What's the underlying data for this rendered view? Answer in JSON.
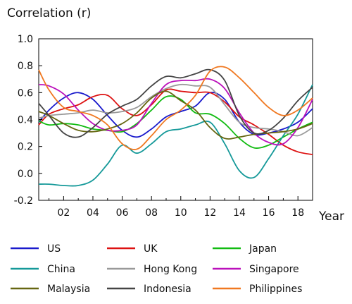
{
  "chart_data": {
    "type": "line",
    "title": "",
    "ylabel": "Correlation (r)",
    "xlabel": "Year",
    "xlim": [
      2000.3,
      2019.0
    ],
    "ylim": [
      -0.2,
      1.0
    ],
    "yticks": [
      -0.2,
      0.0,
      0.2,
      0.4,
      0.6,
      0.8,
      1.0
    ],
    "ytick_labels": [
      "-0.2",
      "0.0",
      "0.2",
      "0.4",
      "0.6",
      "0.8",
      "1.0"
    ],
    "xticks": [
      2002,
      2004,
      2006,
      2008,
      2010,
      2012,
      2014,
      2016,
      2018
    ],
    "xtick_labels": [
      "02",
      "04",
      "06",
      "08",
      "10",
      "12",
      "14",
      "16",
      "18"
    ],
    "grid": false,
    "legend_position": "bottom",
    "x": [
      2000.3,
      2001,
      2002,
      2003,
      2004,
      2005,
      2006,
      2007,
      2008,
      2009,
      2010,
      2011,
      2012,
      2013,
      2014,
      2015,
      2016,
      2017,
      2018,
      2019.0
    ],
    "series": [
      {
        "name": "US",
        "color": "#1a1acc",
        "values": [
          0.38,
          0.47,
          0.56,
          0.6,
          0.55,
          0.43,
          0.32,
          0.27,
          0.33,
          0.42,
          0.46,
          0.5,
          0.6,
          0.55,
          0.38,
          0.29,
          0.3,
          0.33,
          0.38,
          0.48
        ]
      },
      {
        "name": "UK",
        "color": "#dd1111",
        "values": [
          0.36,
          0.44,
          0.48,
          0.51,
          0.57,
          0.58,
          0.48,
          0.43,
          0.51,
          0.62,
          0.61,
          0.6,
          0.6,
          0.53,
          0.42,
          0.36,
          0.29,
          0.21,
          0.16,
          0.14
        ]
      },
      {
        "name": "Japan",
        "color": "#11bb11",
        "values": [
          0.39,
          0.36,
          0.37,
          0.36,
          0.33,
          0.32,
          0.31,
          0.37,
          0.47,
          0.57,
          0.55,
          0.45,
          0.44,
          0.37,
          0.26,
          0.19,
          0.21,
          0.27,
          0.33,
          0.38
        ]
      },
      {
        "name": "China",
        "color": "#159999",
        "values": [
          -0.08,
          -0.08,
          -0.09,
          -0.09,
          -0.05,
          0.07,
          0.21,
          0.15,
          0.22,
          0.31,
          0.33,
          0.36,
          0.38,
          0.22,
          0.02,
          -0.03,
          0.11,
          0.28,
          0.44,
          0.66
        ]
      },
      {
        "name": "Hong Kong",
        "color": "#999999",
        "values": [
          0.41,
          0.43,
          0.44,
          0.45,
          0.47,
          0.45,
          0.46,
          0.49,
          0.57,
          0.63,
          0.66,
          0.65,
          0.64,
          0.51,
          0.38,
          0.34,
          0.33,
          0.31,
          0.28,
          0.34
        ]
      },
      {
        "name": "Singapore",
        "color": "#bb11bb",
        "values": [
          0.66,
          0.65,
          0.59,
          0.47,
          0.37,
          0.32,
          0.32,
          0.36,
          0.52,
          0.66,
          0.69,
          0.69,
          0.7,
          0.63,
          0.45,
          0.3,
          0.23,
          0.22,
          0.34,
          0.55
        ]
      },
      {
        "name": "Malaysia",
        "color": "#666611",
        "values": [
          0.46,
          0.43,
          0.37,
          0.32,
          0.31,
          0.33,
          0.37,
          0.45,
          0.56,
          0.61,
          0.54,
          0.47,
          0.34,
          0.26,
          0.27,
          0.29,
          0.3,
          0.31,
          0.33,
          0.37
        ]
      },
      {
        "name": "Indonesia",
        "color": "#444444",
        "values": [
          0.52,
          0.43,
          0.3,
          0.27,
          0.34,
          0.44,
          0.5,
          0.55,
          0.65,
          0.72,
          0.71,
          0.74,
          0.77,
          0.69,
          0.43,
          0.3,
          0.32,
          0.41,
          0.54,
          0.64
        ]
      },
      {
        "name": "Philippines",
        "color": "#f07820",
        "values": [
          0.77,
          0.62,
          0.49,
          0.46,
          0.43,
          0.36,
          0.22,
          0.18,
          0.28,
          0.4,
          0.47,
          0.58,
          0.76,
          0.79,
          0.71,
          0.6,
          0.49,
          0.43,
          0.47,
          0.56
        ]
      }
    ]
  }
}
